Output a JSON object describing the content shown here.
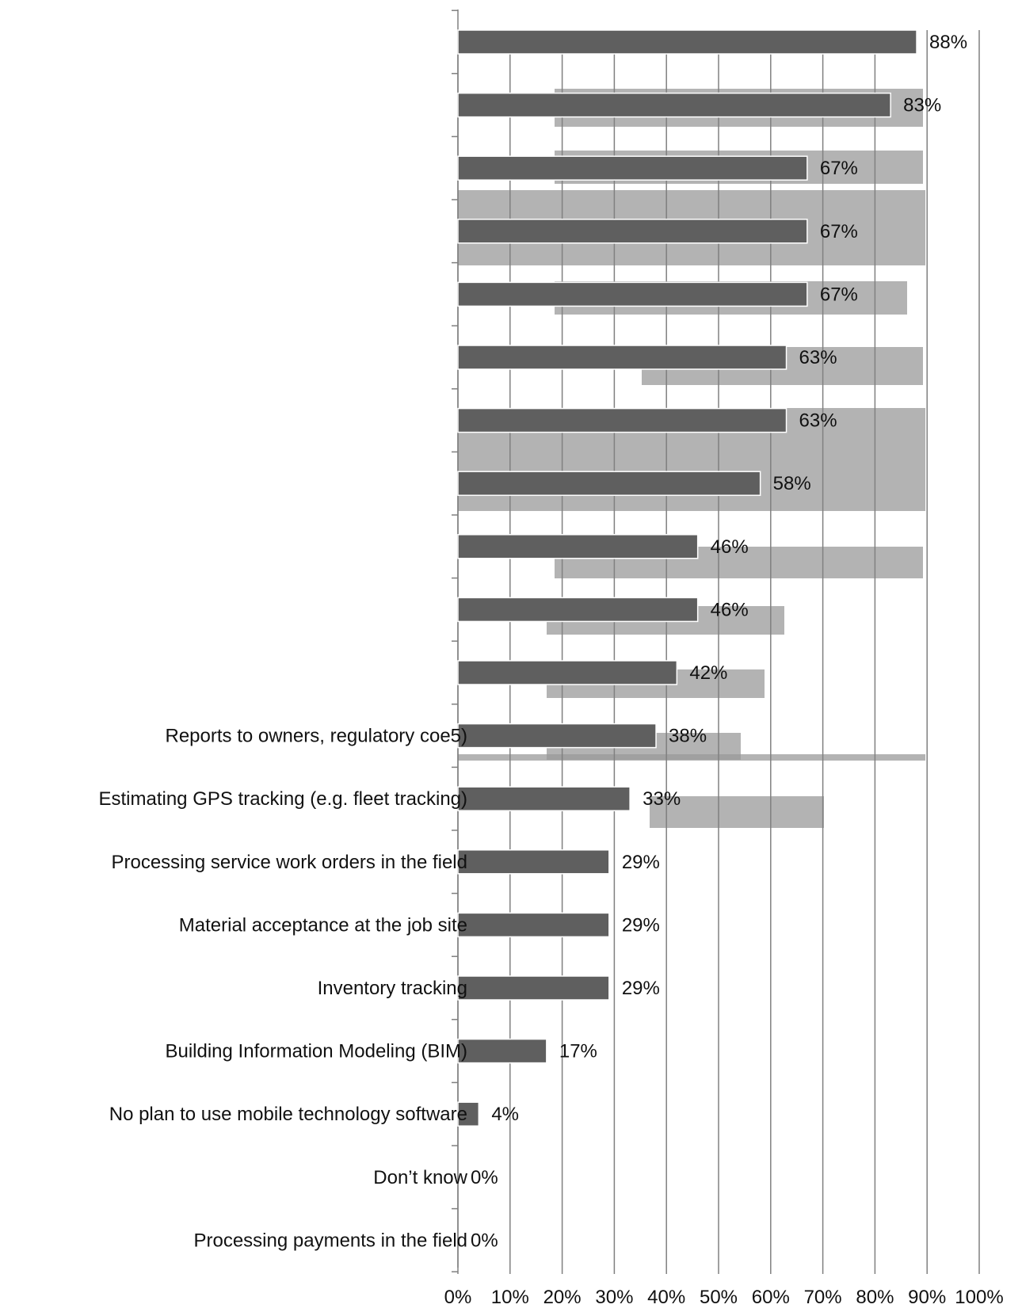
{
  "chart_data": {
    "type": "bar",
    "orientation": "horizontal",
    "categories": [
      "",
      "",
      "",
      "",
      "",
      "",
      "",
      "",
      "",
      "",
      "",
      "Reports to owners, regulatory coe5)",
      "Estimating GPS tracking (e.g. fleet tracking)",
      "Processing service work orders in the field",
      "Material acceptance at the job site",
      "Inventory tracking",
      "Building Information Modeling (BIM)",
      "No plan to use mobile technology software",
      "Don’t know",
      "Processing payments in the field"
    ],
    "values": [
      88,
      83,
      67,
      67,
      67,
      63,
      63,
      58,
      46,
      46,
      42,
      38,
      33,
      29,
      29,
      29,
      17,
      4,
      0,
      0
    ],
    "value_labels": [
      "88%",
      "83%",
      "67%",
      "67%",
      "67%",
      "63%",
      "63%",
      "58%",
      "46%",
      "46%",
      "42%",
      "38%",
      "33%",
      "29%",
      "29%",
      "29%",
      "17%",
      "4%",
      "0%",
      "0%"
    ],
    "xlim": [
      0,
      100
    ],
    "x_ticks": [
      "0%",
      "10%",
      "20%",
      "30%",
      "40%",
      "50%",
      "60%",
      "70%",
      "80%",
      "90%",
      "100%"
    ],
    "title": "",
    "xlabel": "",
    "ylabel": "",
    "grid": "vertical",
    "legend": "none",
    "colors": {
      "bar": "#5f5f5f",
      "grid": "#808080",
      "text": "#111111"
    }
  }
}
